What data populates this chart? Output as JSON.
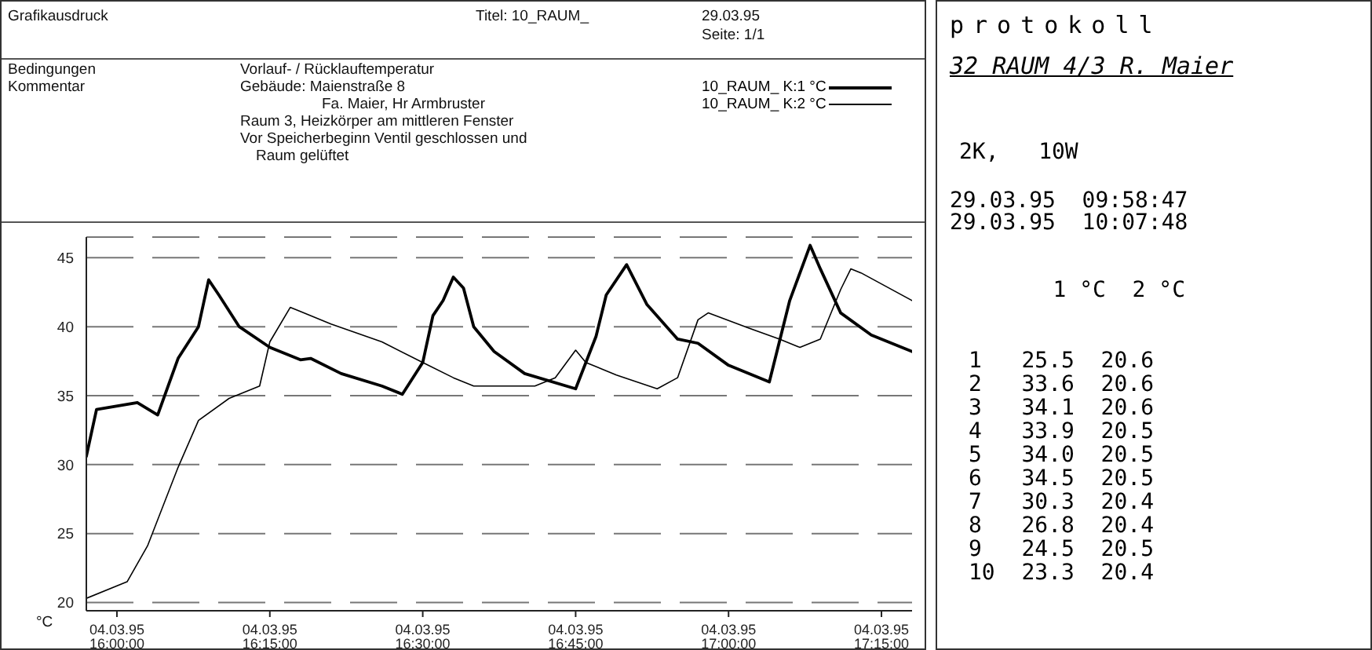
{
  "chart_data": {
    "type": "line",
    "title": "Titel: 10_RAUM_",
    "ylabel": "°C",
    "annotations": [
      "Grafikausdruck",
      "29.03.95",
      "Seite: 1/1",
      "Bedingungen",
      "Kommentar",
      "Vorlauf- / Rücklauftemperatur",
      "Gebäude: Maienstraße 8",
      "Fa. Maier, Hr Armbruster",
      "Raum 3, Heizkörper am mittleren Fenster",
      "Vor Speicherbeginn Ventil geschlossen und",
      "Raum gelüftet",
      "protokoll",
      "32 RAUM 4/3 R. Maier",
      "2K,   10W",
      "29.03.95  09:58:47",
      "29.03.95  10:07:48",
      "    1 °C  2 °C",
      "1   25.5  20.6",
      "2   33.6  20.6",
      "3   34.1  20.6",
      "4   33.9  20.5",
      "5   34.0  20.5",
      "6   34.5  20.5",
      "7   30.3  20.4",
      "8   26.8  20.4",
      "9   24.5  20.5",
      "10  23.3  20.4"
    ],
    "xlim": [
      "1995-03-04T15:57",
      "1995-03-04T17:18"
    ],
    "xticks": [
      {
        "value": "1995-03-04T16:00",
        "label": "04.03.95 16:00:00"
      },
      {
        "value": "1995-03-04T16:15",
        "label": "04.03.95 16:15:00"
      },
      {
        "value": "1995-03-04T16:30",
        "label": "04.03.95 16:30:00"
      },
      {
        "value": "1995-03-04T16:45",
        "label": "04.03.95 16:45:00"
      },
      {
        "value": "1995-03-04T17:00",
        "label": "04.03.95 17:00:00"
      },
      {
        "value": "1995-03-04T17:15",
        "label": "04.03.95 17:15:00"
      }
    ],
    "ylim": [
      19.4,
      46.5
    ],
    "yticks": [
      20,
      25,
      30,
      35,
      40,
      45
    ],
    "grid": "y",
    "legend": "top right",
    "marker": "none",
    "line_style": "solid",
    "series": [
      {
        "name": "10_RAUM_ K:1 °C",
        "color": "#000000",
        "x": [
          "1995-03-04T15:57",
          "1995-03-04T15:58",
          "1995-03-04T16:02",
          "1995-03-04T16:04",
          "1995-03-04T16:06",
          "1995-03-04T16:08",
          "1995-03-04T16:09",
          "1995-03-04T16:10",
          "1995-03-04T16:12",
          "1995-03-04T16:15",
          "1995-03-04T16:18",
          "1995-03-04T16:19",
          "1995-03-04T16:22",
          "1995-03-04T16:26",
          "1995-03-04T16:28",
          "1995-03-04T16:30",
          "1995-03-04T16:31",
          "1995-03-04T16:32",
          "1995-03-04T16:33",
          "1995-03-04T16:34",
          "1995-03-04T16:35",
          "1995-03-04T16:37",
          "1995-03-04T16:40",
          "1995-03-04T16:45",
          "1995-03-04T16:47",
          "1995-03-04T16:48",
          "1995-03-04T16:50",
          "1995-03-04T16:52",
          "1995-03-04T16:55",
          "1995-03-04T16:57",
          "1995-03-04T17:00",
          "1995-03-04T17:04",
          "1995-03-04T17:06",
          "1995-03-04T17:08",
          "1995-03-04T17:09",
          "1995-03-04T17:11",
          "1995-03-04T17:14",
          "1995-03-04T17:18"
        ],
        "values": [
          30.6,
          34.0,
          34.5,
          33.6,
          37.7,
          40,
          43.4,
          42.3,
          40,
          38.5,
          37.6,
          37.7,
          36.6,
          35.7,
          35.1,
          37.4,
          40.8,
          41.9,
          43.6,
          42.8,
          40,
          38.2,
          36.6,
          35.5,
          39.3,
          42.3,
          44.5,
          41.6,
          39.1,
          38.8,
          37.2,
          36,
          41.9,
          45.9,
          44.2,
          41,
          39.4,
          38.2
        ]
      },
      {
        "name": "10_RAUM_ K:2 °C",
        "color": "#000000",
        "x": [
          "1995-03-04T15:57",
          "1995-03-04T16:01",
          "1995-03-04T16:03",
          "1995-03-04T16:06",
          "1995-03-04T16:08",
          "1995-03-04T16:11",
          "1995-03-04T16:14",
          "1995-03-04T16:15",
          "1995-03-04T16:17",
          "1995-03-04T16:18",
          "1995-03-04T16:21",
          "1995-03-04T16:26",
          "1995-03-04T16:30",
          "1995-03-04T16:33",
          "1995-03-04T16:35",
          "1995-03-04T16:37",
          "1995-03-04T16:41",
          "1995-03-04T16:43",
          "1995-03-04T16:45",
          "1995-03-04T16:46",
          "1995-03-04T16:49",
          "1995-03-04T16:53",
          "1995-03-04T16:55",
          "1995-03-04T16:57",
          "1995-03-04T16:58",
          "1995-03-04T17:02",
          "1995-03-04T17:05",
          "1995-03-04T17:07",
          "1995-03-04T17:09",
          "1995-03-04T17:11",
          "1995-03-04T17:12",
          "1995-03-04T17:13",
          "1995-03-04T17:18"
        ],
        "values": [
          20.3,
          21.5,
          24.1,
          29.8,
          33.2,
          34.8,
          35.7,
          38.9,
          41.4,
          41.1,
          40.2,
          38.9,
          37.4,
          36.3,
          35.7,
          35.7,
          35.7,
          36.3,
          38.3,
          37.4,
          36.5,
          35.5,
          36.3,
          40.5,
          41,
          39.9,
          39.1,
          38.5,
          39.1,
          42.7,
          44.2,
          43.9,
          41.9
        ]
      }
    ]
  }
}
